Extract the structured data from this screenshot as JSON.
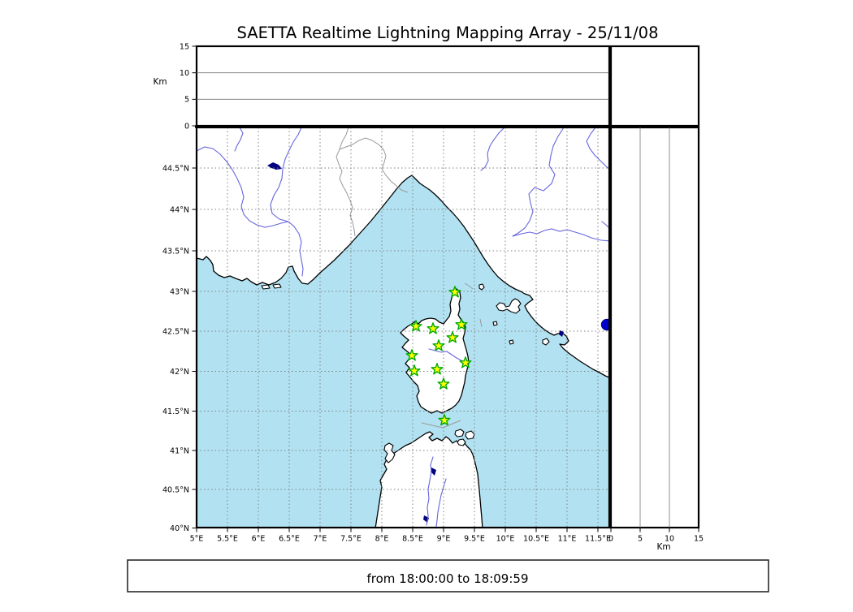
{
  "title": "SAETTA Realtime Lightning Mapping Array - 25/11/08",
  "footer": {
    "time_range": "from 18:00:00 to 18:09:59"
  },
  "altitude_axis": {
    "label": "Km",
    "ticks": [
      "0",
      "5",
      "10",
      "15"
    ],
    "range": [
      0,
      15
    ]
  },
  "map_axes": {
    "lon_ticks": [
      "5°E",
      "5.5°E",
      "6°E",
      "6.5°E",
      "7°E",
      "7.5°E",
      "8°E",
      "8.5°E",
      "9°E",
      "9.5°E",
      "10°E",
      "10.5°E",
      "11°E",
      "11.5°E"
    ],
    "lat_ticks": [
      "44.5°N",
      "44°N",
      "43.5°N",
      "43°N",
      "42.5°N",
      "42°N",
      "41.5°N",
      "41°N",
      "40.5°N",
      "40°N"
    ]
  },
  "colors": {
    "sea": "#b2e2f2",
    "land": "#ffffff",
    "coast": "#000000",
    "river": "#6666dd",
    "region_border": "#999999",
    "grid": "#808080",
    "lake": "#000080",
    "station_fill": "#ffff00",
    "station_edge": "#00aa00",
    "event_dot": "#0000cd"
  },
  "chart_data": {
    "type": "scatter",
    "title": "SAETTA Realtime Lightning Mapping Array - 25/11/08",
    "map_extent": {
      "lon": [
        5.0,
        11.7
      ],
      "lat": [
        40.0,
        45.0
      ]
    },
    "altitude_km_range": [
      0,
      15
    ],
    "grid_step_deg": 0.5,
    "time_window": {
      "from": "18:00:00",
      "to": "18:09:59"
    },
    "stations": [
      {
        "lon": 9.184,
        "lat": 42.99
      },
      {
        "lon": 8.553,
        "lat": 42.561
      },
      {
        "lon": 8.829,
        "lat": 42.531
      },
      {
        "lon": 9.289,
        "lat": 42.582
      },
      {
        "lon": 9.145,
        "lat": 42.419
      },
      {
        "lon": 8.921,
        "lat": 42.318
      },
      {
        "lon": 8.487,
        "lat": 42.197
      },
      {
        "lon": 9.355,
        "lat": 42.106
      },
      {
        "lon": 8.526,
        "lat": 42.005
      },
      {
        "lon": 8.895,
        "lat": 42.025
      },
      {
        "lon": 9.0,
        "lat": 41.84
      },
      {
        "lon": 9.013,
        "lat": 41.384
      }
    ],
    "events": [
      {
        "lon": 11.645,
        "lat": 42.582,
        "color": "#0000cd"
      }
    ],
    "top_panel_series": [],
    "right_panel_series": []
  }
}
